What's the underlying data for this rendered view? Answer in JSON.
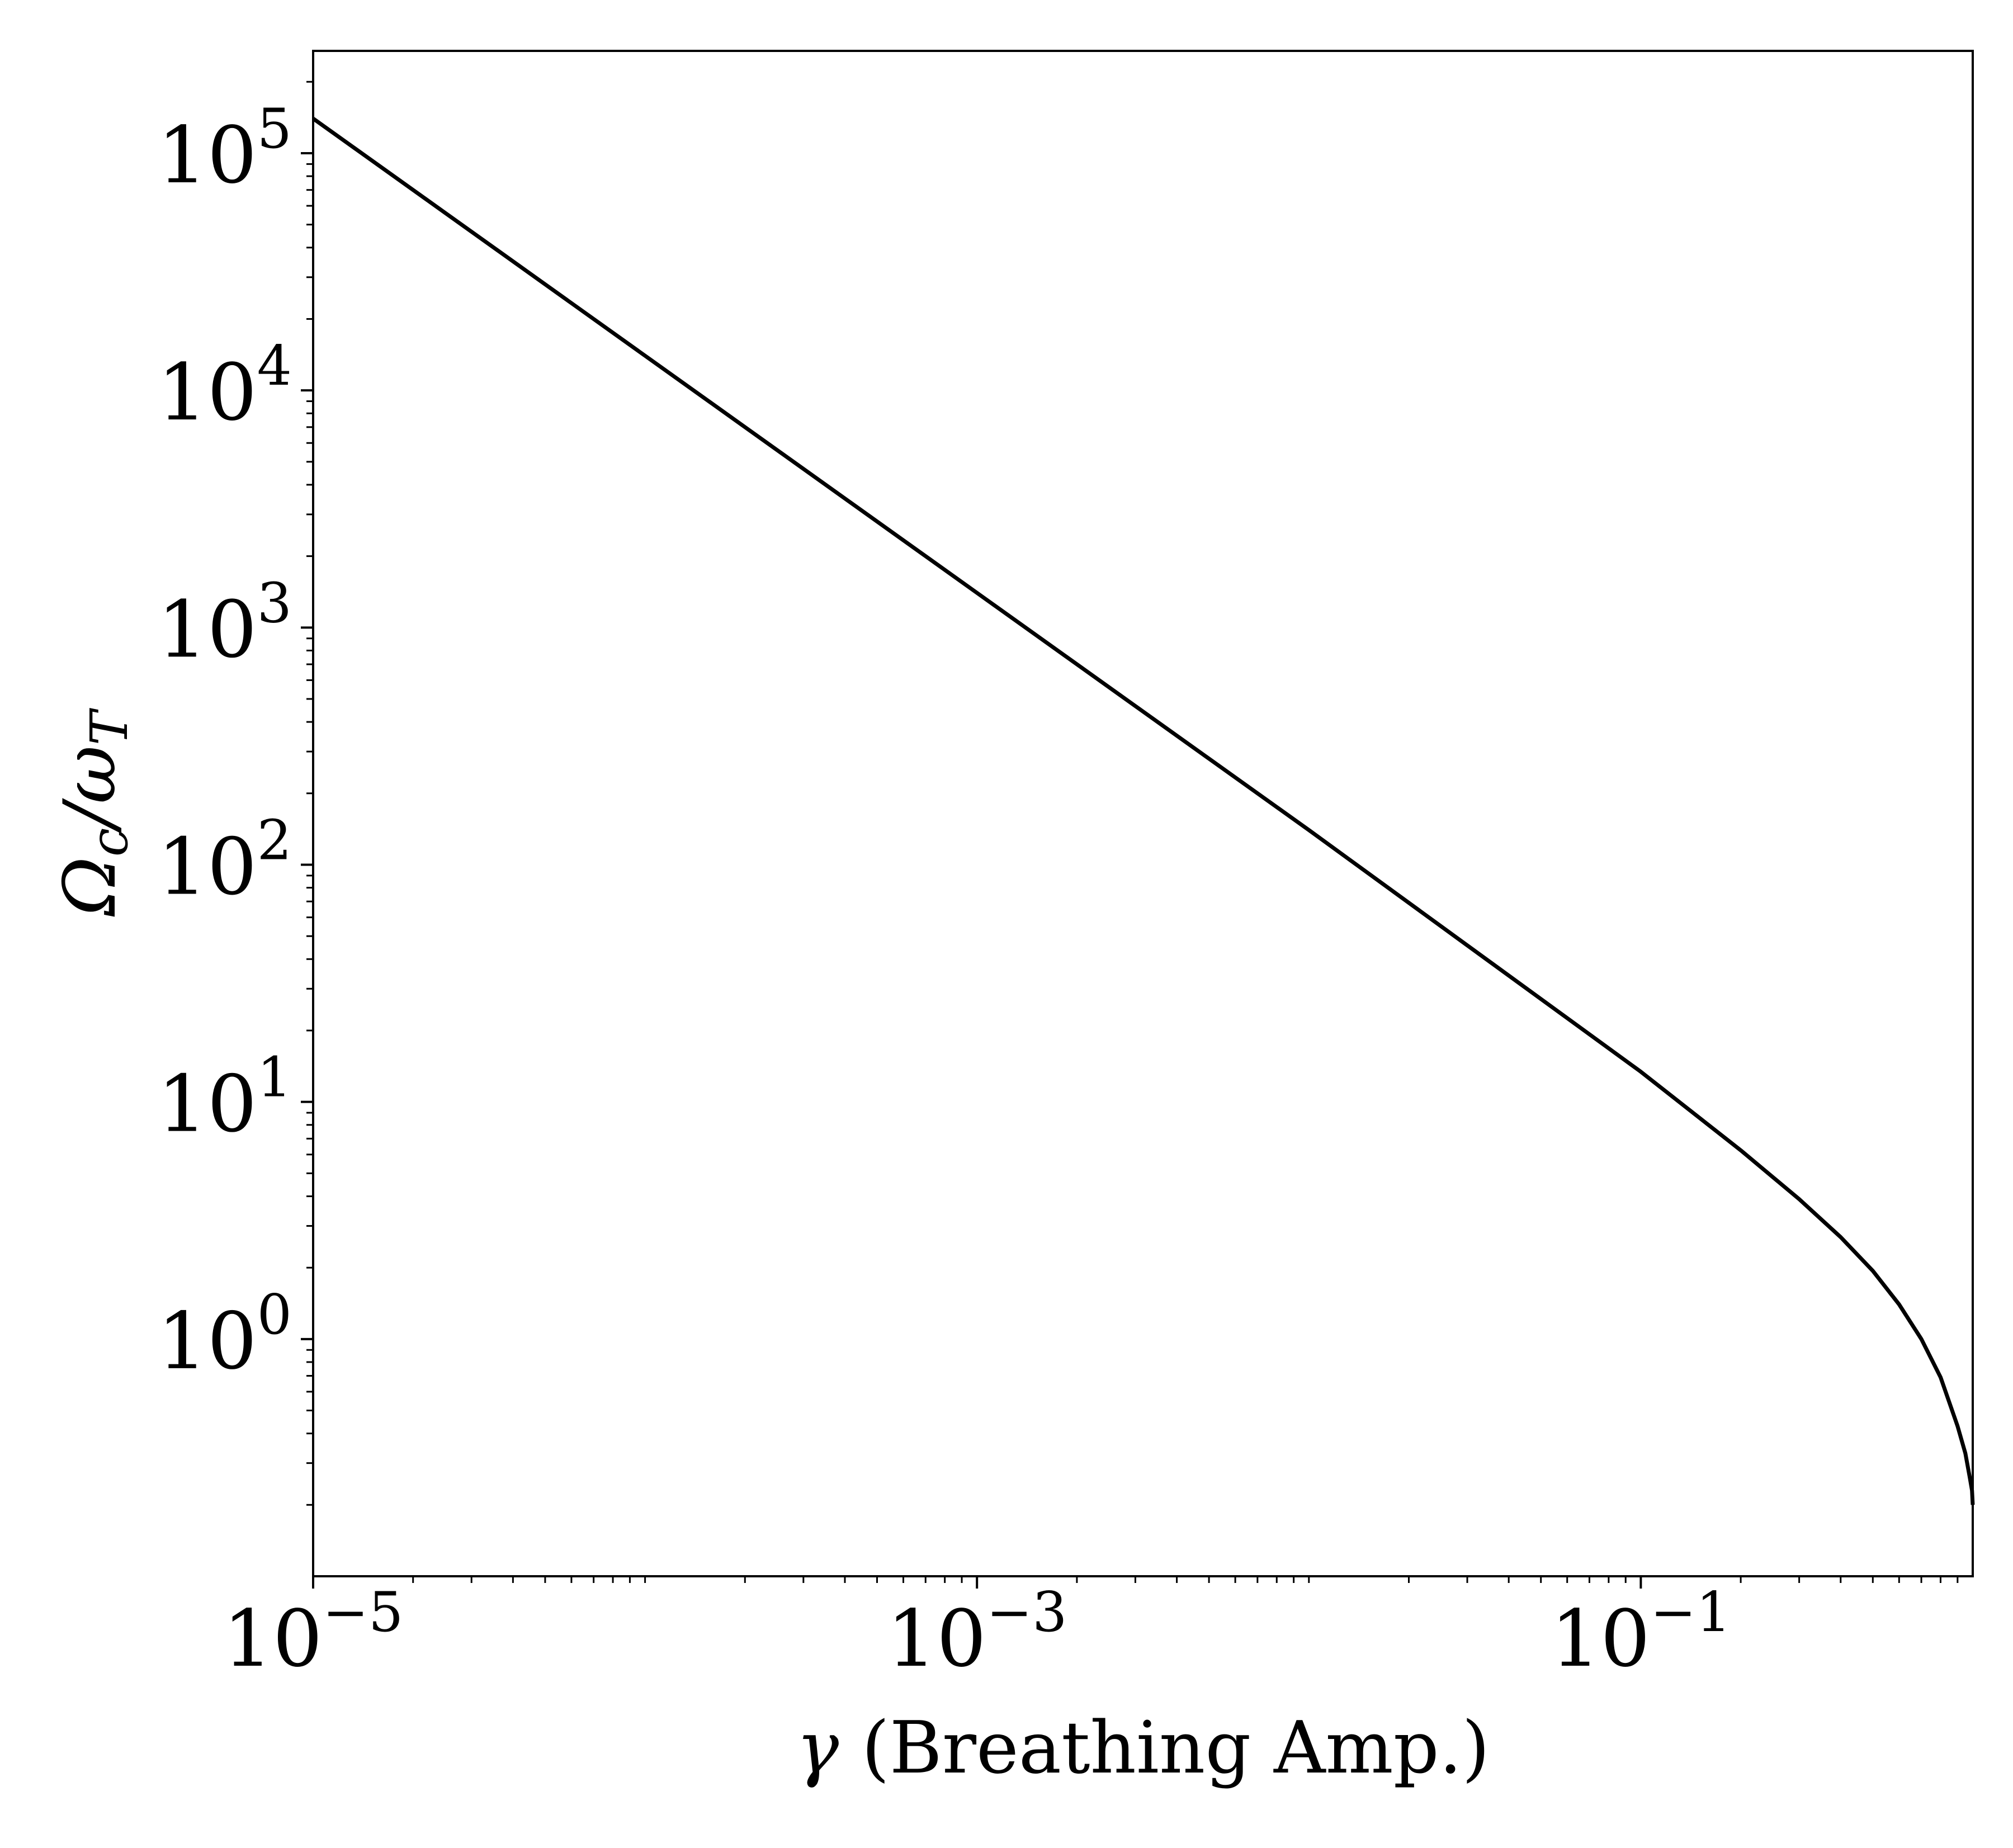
{
  "chart_data": {
    "type": "line",
    "title": "",
    "xlabel": {
      "symbol": "γ",
      "text": " (Breathing Amp.)"
    },
    "ylabel": {
      "main": "Ω",
      "sub1": "c",
      "slash": "/ω",
      "sub2": "T"
    },
    "xscale": "log",
    "yscale": "log",
    "xlim": [
      1e-05,
      1.0
    ],
    "ylim": [
      0.1,
      270000
    ],
    "grid": false,
    "legend": null,
    "x_ticks": [
      {
        "value": 1e-05,
        "base": "10",
        "exp": "−5"
      },
      {
        "value": 0.001,
        "base": "10",
        "exp": "−3"
      },
      {
        "value": 0.1,
        "base": "10",
        "exp": "−1"
      }
    ],
    "y_ticks": [
      {
        "value": 1,
        "base": "10",
        "exp": "0"
      },
      {
        "value": 10,
        "base": "10",
        "exp": "1"
      },
      {
        "value": 100,
        "base": "10",
        "exp": "2"
      },
      {
        "value": 1000,
        "base": "10",
        "exp": "3"
      },
      {
        "value": 10000,
        "base": "10",
        "exp": "4"
      },
      {
        "value": 100000,
        "base": "10",
        "exp": "5"
      }
    ],
    "series": [
      {
        "color": "#000000",
        "x": [
          1e-05,
          0.0001,
          0.001,
          0.01,
          0.1,
          0.2,
          0.3,
          0.4,
          0.5,
          0.6,
          0.7,
          0.8,
          0.9,
          0.95,
          0.98,
          0.995,
          1.0
        ],
        "y": [
          140000,
          14000,
          1400,
          140,
          13.4,
          6.25,
          3.89,
          2.69,
          1.94,
          1.4,
          1.0,
          0.69,
          0.43,
          0.33,
          0.26,
          0.23,
          0.2
        ]
      }
    ]
  }
}
